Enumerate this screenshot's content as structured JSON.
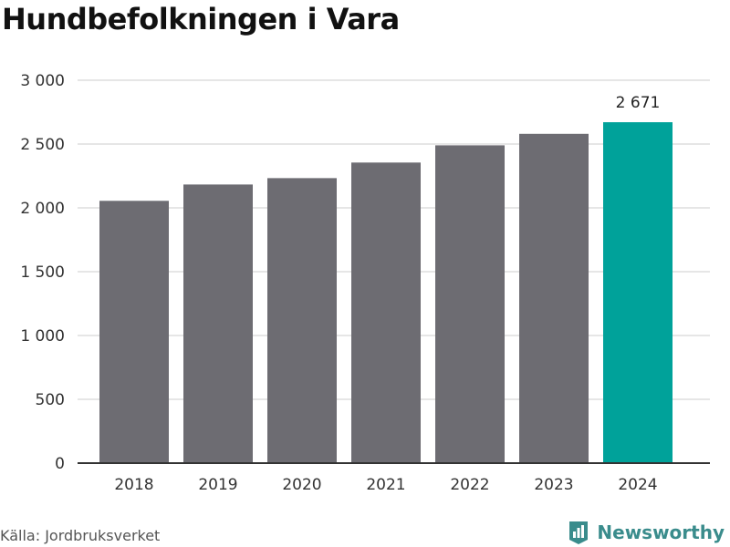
{
  "title": "Hundbefolkningen i Vara",
  "source": "Källa: Jordbruksverket",
  "brand": {
    "name": "Newsworthy",
    "color": "#3a8c8c",
    "icon": "newsworthy-logo-icon"
  },
  "colors": {
    "bar": "#6d6c72",
    "highlight": "#00a29a",
    "grid": "#dddddd",
    "axis": "#333333"
  },
  "chart_data": {
    "type": "bar",
    "categories": [
      "2018",
      "2019",
      "2020",
      "2021",
      "2022",
      "2023",
      "2024"
    ],
    "values": [
      2055,
      2183,
      2233,
      2355,
      2490,
      2580,
      2671
    ],
    "highlight_index": 6,
    "data_labels": [
      {
        "index": 6,
        "text": "2 671"
      }
    ],
    "yticks": [
      0,
      500,
      1000,
      1500,
      2000,
      2500,
      3000
    ],
    "ytick_labels": [
      "0",
      "500",
      "1 000",
      "1 500",
      "2 000",
      "2 500",
      "3 000"
    ],
    "ylim": [
      0,
      3000
    ],
    "grid": true,
    "legend": "none",
    "xlabel": "",
    "ylabel": ""
  }
}
